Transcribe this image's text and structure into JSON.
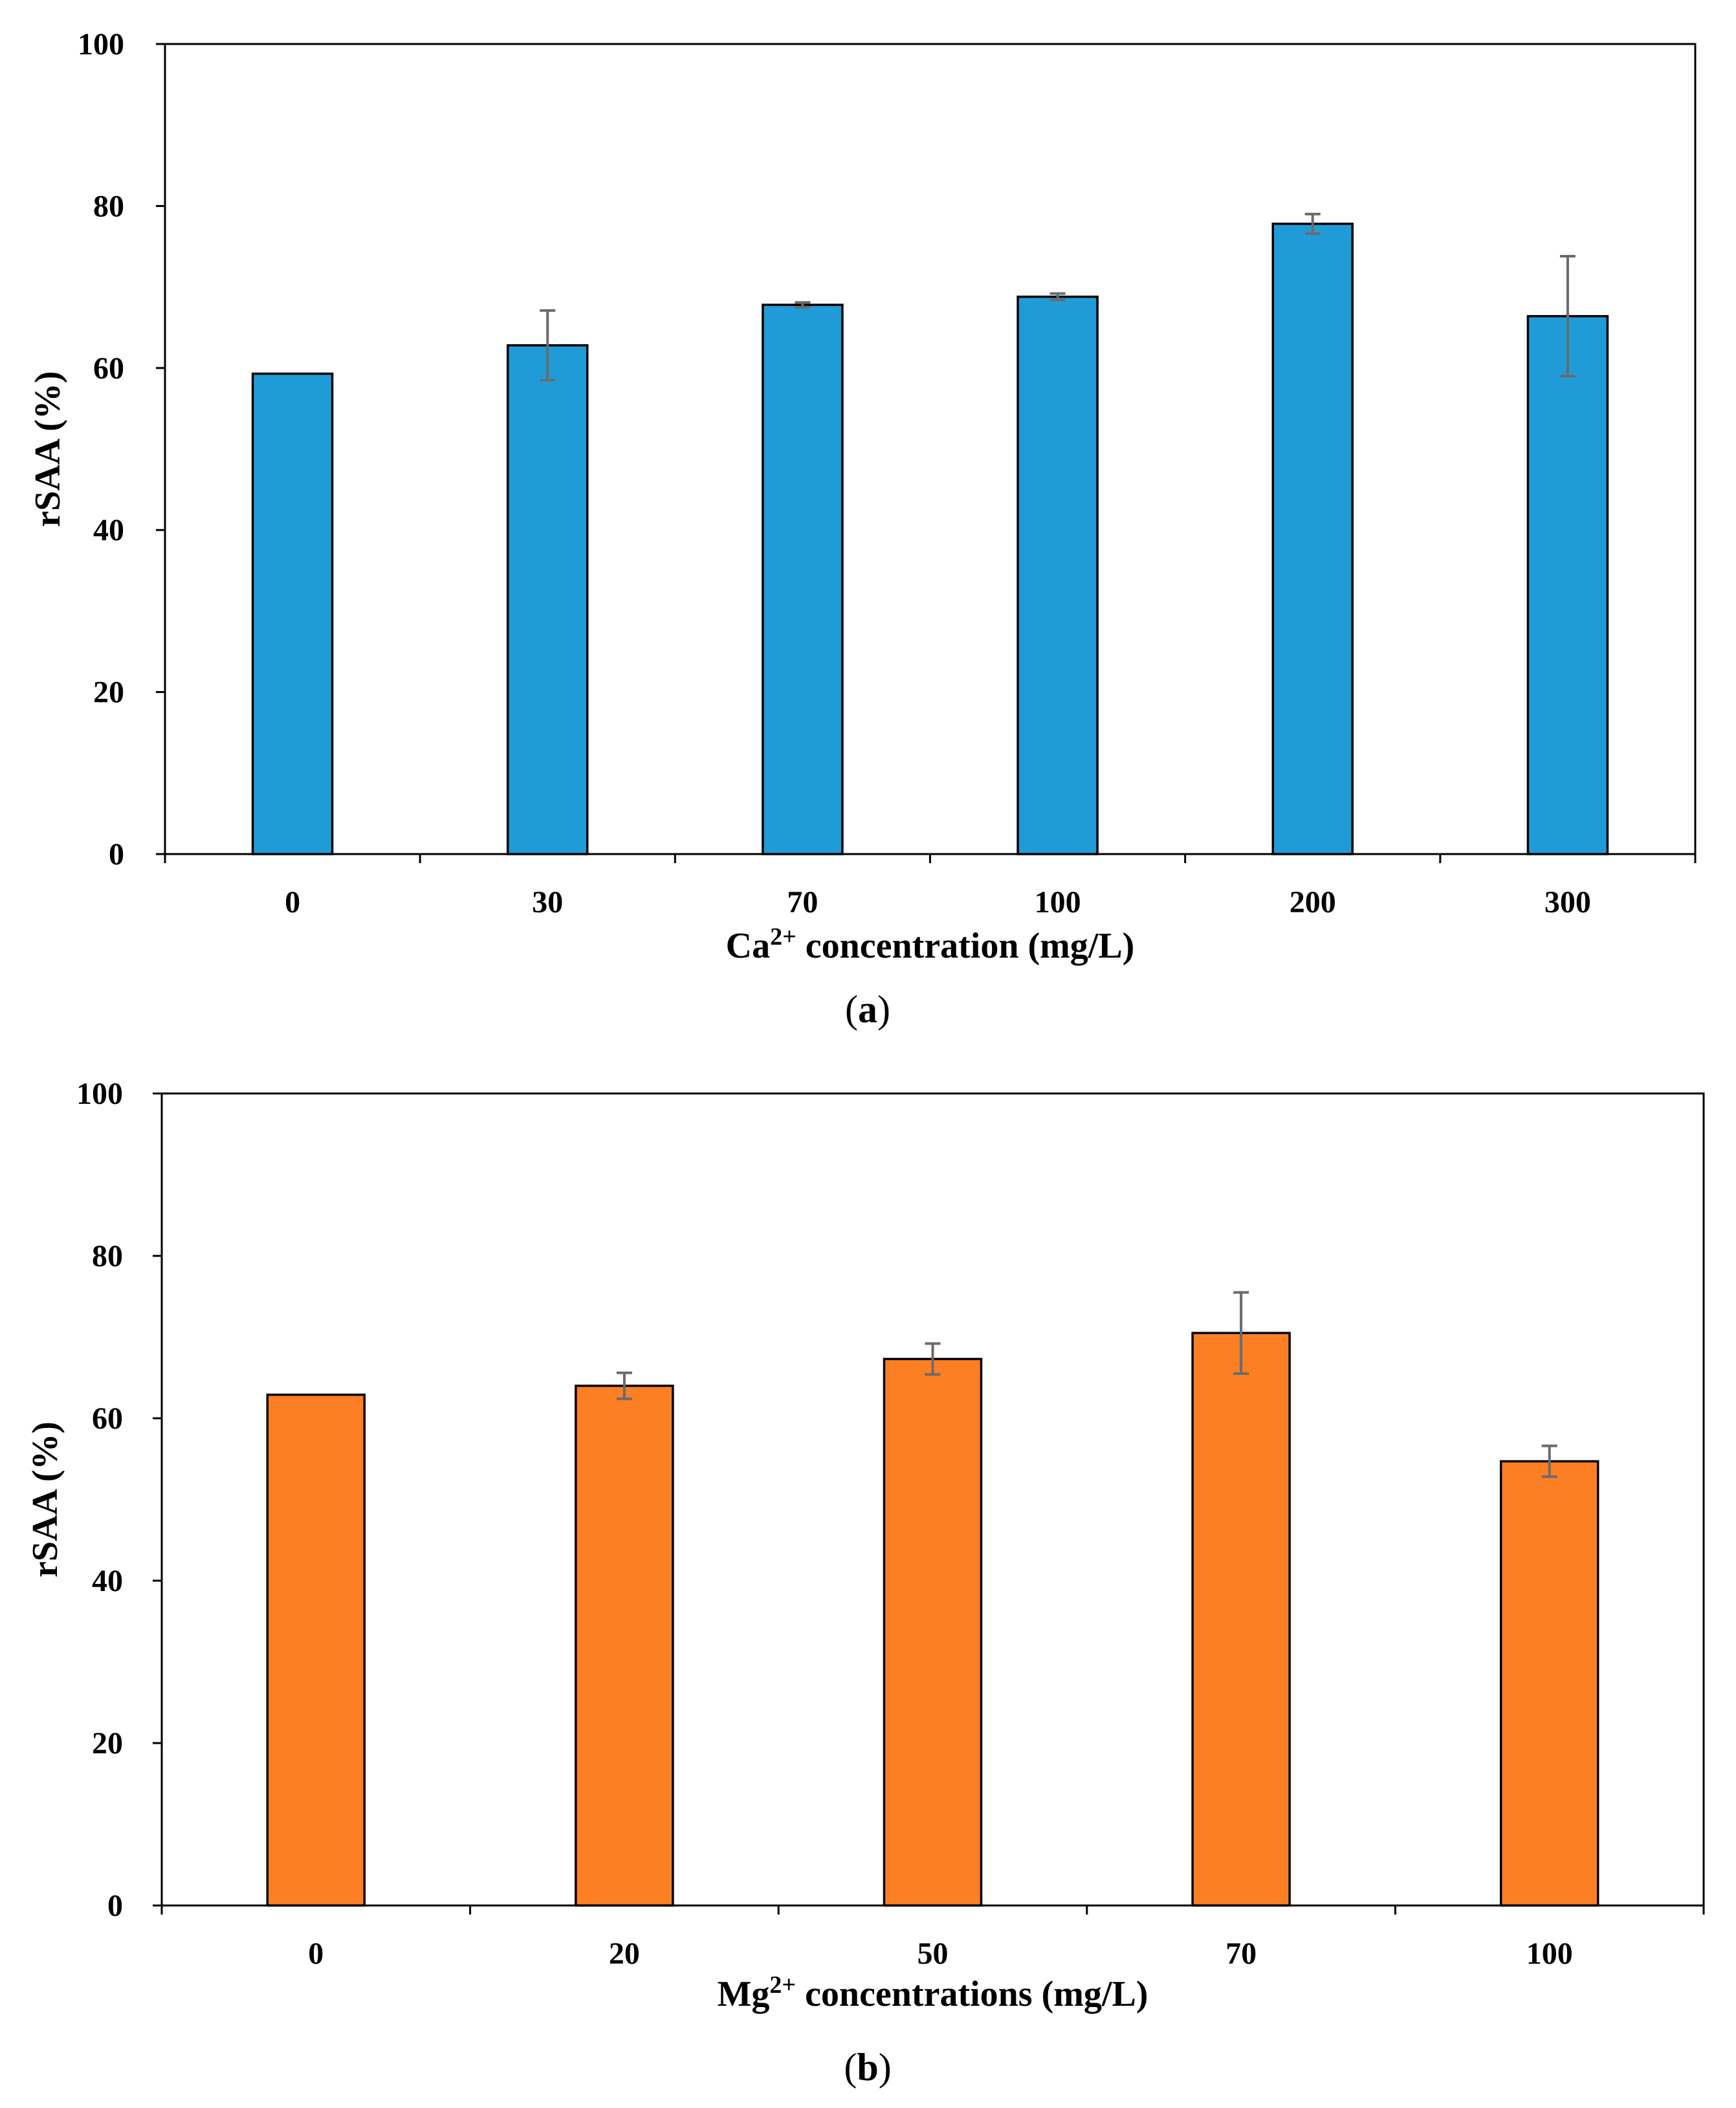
{
  "chart_data": [
    {
      "id": "a",
      "type": "bar",
      "caption_open": "(",
      "caption_letter": "a",
      "caption_close": ")",
      "categories": [
        "0",
        "30",
        "70",
        "100",
        "200",
        "300"
      ],
      "values": [
        59.3,
        62.8,
        67.8,
        68.8,
        77.8,
        66.4
      ],
      "errors": [
        0,
        4.3,
        0.3,
        0.4,
        1.2,
        7.4
      ],
      "xlabel_prefix": "Ca",
      "xlabel_sup": "2+",
      "xlabel_suffix": " concentration (mg/L)",
      "ylabel": "rSAA (%)",
      "ylim": [
        0,
        100
      ],
      "yticks": [
        "0",
        "20",
        "40",
        "60",
        "80",
        "100"
      ],
      "bar_color": "#1f9cd8",
      "grid": false,
      "legend": "none"
    },
    {
      "id": "b",
      "type": "bar",
      "caption_open": "(",
      "caption_letter": "b",
      "caption_close": ")",
      "categories": [
        "0",
        "20",
        "50",
        "70",
        "100"
      ],
      "values": [
        62.9,
        64.0,
        67.3,
        70.5,
        54.7
      ],
      "errors": [
        0,
        1.6,
        1.9,
        5.0,
        1.9
      ],
      "xlabel_prefix": "Mg",
      "xlabel_sup": "2+",
      "xlabel_suffix": " concentrations (mg/L)",
      "ylabel": "rSAA (%)",
      "ylim": [
        0,
        100
      ],
      "yticks": [
        "0",
        "20",
        "40",
        "60",
        "80",
        "100"
      ],
      "bar_color": "#fd7f23",
      "grid": false,
      "legend": "none"
    }
  ]
}
